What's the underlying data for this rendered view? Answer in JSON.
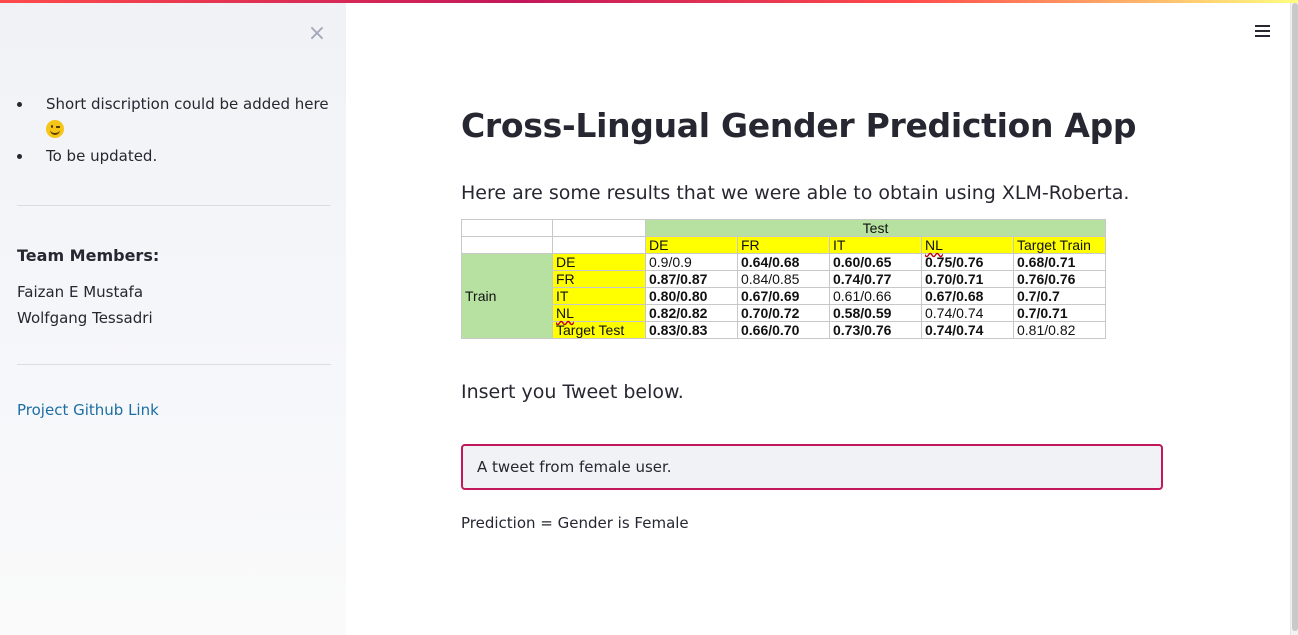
{
  "sidebar": {
    "close_icon": "close-icon",
    "bullets": [
      "Short discription could be added here",
      "To be updated."
    ],
    "emoji_icon": "wink-emoji-icon",
    "team_title": "Team Members:",
    "members": [
      "Faizan E Mustafa",
      "Wolfgang Tessadri"
    ],
    "github_link": "Project Github Link"
  },
  "header": {
    "menu_icon": "hamburger-menu-icon"
  },
  "main": {
    "title": "Cross-Lingual Gender Prediction App",
    "subtitle": "Here are some results that we were able to obtain using XLM-Roberta.",
    "table": {
      "test_header": "Test",
      "train_header": "Train",
      "columns": [
        "DE",
        "FR",
        "IT",
        "NL",
        "Target Train"
      ],
      "rows": [
        {
          "label": "DE",
          "cells": [
            "0.9/0.9",
            "0.64/0.68",
            "0.60/0.65",
            "0.75/0.76",
            "0.68/0.71"
          ],
          "bold": [
            false,
            true,
            true,
            true,
            true
          ]
        },
        {
          "label": "FR",
          "cells": [
            "0.87/0.87",
            "0.84/0.85",
            "0.74/0.77",
            "0.70/0.71",
            "0.76/0.76"
          ],
          "bold": [
            true,
            false,
            true,
            true,
            true
          ]
        },
        {
          "label": "IT",
          "cells": [
            "0.80/0.80",
            "0.67/0.69",
            "0.61/0.66",
            "0.67/0.68",
            "0.7/0.7"
          ],
          "bold": [
            true,
            true,
            false,
            true,
            true
          ]
        },
        {
          "label": "NL",
          "cells": [
            "0.82/0.82",
            "0.70/0.72",
            "0.58/0.59",
            "0.74/0.74",
            "0.7/0.71"
          ],
          "bold": [
            true,
            true,
            true,
            false,
            true
          ]
        },
        {
          "label": "Target Test",
          "cells": [
            "0.83/0.83",
            "0.66/0.70",
            "0.73/0.76",
            "0.74/0.74",
            "0.81/0.82"
          ],
          "bold": [
            true,
            true,
            true,
            true,
            false
          ]
        }
      ]
    },
    "insert_label": "Insert you Tweet below.",
    "tweet_value": "A tweet from female user.",
    "prediction": "Prediction = Gender is Female"
  },
  "colors": {
    "accent": "#c2185b",
    "link": "#1c6ea4",
    "table_green": "#b7e1a1",
    "table_yellow": "#ffff00"
  }
}
